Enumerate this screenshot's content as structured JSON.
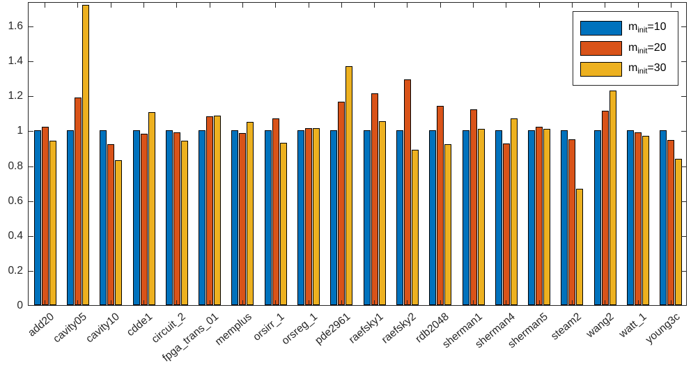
{
  "chart_data": {
    "type": "bar",
    "title": "",
    "xlabel": "",
    "ylabel": "",
    "grid": false,
    "legend_position": "top-right",
    "ylim": [
      0,
      1.74
    ],
    "yticks": [
      0,
      0.2,
      0.4,
      0.6,
      0.8,
      1,
      1.2,
      1.4,
      1.6
    ],
    "ytick_labels": [
      "0",
      "0.2",
      "0.4",
      "0.6",
      "0.8",
      "1",
      "1.2",
      "1.4",
      "1.6"
    ],
    "axis_color": "#262626",
    "bar_edge_color": "#000000",
    "categories": [
      "add20",
      "cavity05",
      "cavity10",
      "cdde1",
      "circuit_2",
      "fpga_trans_01",
      "memplus",
      "orsirr_1",
      "orsreg_1",
      "pde2961",
      "raefsky1",
      "raefsky2",
      "rdb2048",
      "sherman1",
      "sherman4",
      "sherman5",
      "steam2",
      "wang2",
      "watt_1",
      "young3c"
    ],
    "series": [
      {
        "name": "m_init=10",
        "legend": {
          "base": "m",
          "sub": "init",
          "rest": "=10"
        },
        "color": "#0072BD",
        "values": [
          1.0,
          1.0,
          1.0,
          1.0,
          1.0,
          1.0,
          1.0,
          1.0,
          1.0,
          1.0,
          1.0,
          1.0,
          1.0,
          1.0,
          1.0,
          1.0,
          1.0,
          1.0,
          1.0,
          1.0
        ]
      },
      {
        "name": "m_init=20",
        "legend": {
          "base": "m",
          "sub": "init",
          "rest": "=20"
        },
        "color": "#D95319",
        "values": [
          1.02,
          1.19,
          0.92,
          0.98,
          0.99,
          1.08,
          0.985,
          1.07,
          1.015,
          1.165,
          1.215,
          1.295,
          1.14,
          1.12,
          0.925,
          1.02,
          0.95,
          1.115,
          0.99,
          0.945
        ]
      },
      {
        "name": "m_init=30",
        "legend": {
          "base": "m",
          "sub": "init",
          "rest": "=30"
        },
        "color": "#EDB120",
        "values": [
          0.94,
          1.72,
          0.83,
          1.105,
          0.94,
          1.085,
          1.05,
          0.93,
          1.015,
          1.37,
          1.055,
          0.89,
          0.92,
          1.01,
          1.07,
          1.01,
          0.665,
          1.23,
          0.97,
          0.84
        ]
      }
    ]
  }
}
